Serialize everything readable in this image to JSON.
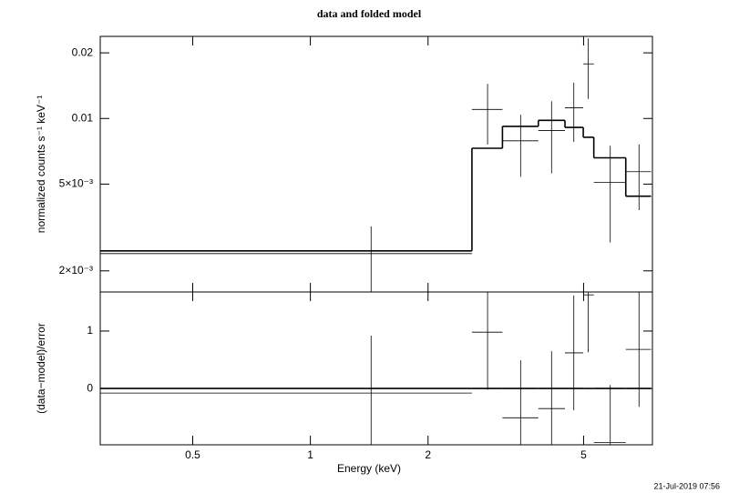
{
  "chart_data": [
    {
      "type": "errorbar",
      "title": "data and folded model",
      "ylabel": "normalized counts s⁻¹ keV⁻¹",
      "xscale": "log",
      "yscale": "log",
      "xlim": [
        0.29,
        7.5
      ],
      "xticks": [
        0.5,
        1,
        2,
        5
      ],
      "ylim": [
        0.0016,
        0.0238
      ],
      "yticks": [
        0.02,
        0.01,
        {
          "value": 0.005,
          "label": "5×10⁻³"
        },
        {
          "value": 0.002,
          "label": "2×10⁻³"
        }
      ],
      "bins": [
        0.29,
        2.59,
        3.1,
        3.83,
        4.48,
        4.99,
        5.31,
        6.41,
        7.44
      ],
      "x": [
        1.43,
        2.84,
        3.45,
        4.14,
        4.72,
        5.14,
        5.85,
        6.93
      ],
      "series": [
        {
          "style": "errorbar",
          "color": "#000000",
          "values": [
            0.0024,
            0.011,
            0.0079,
            0.0088,
            0.0112,
            0.0178,
            0.0051,
            0.0057
          ],
          "errors": [
            0.0008,
            0.0034,
            0.0025,
            0.0032,
            0.0034,
            0.0055,
            0.0024,
            0.0019
          ]
        },
        {
          "style": "step",
          "color": "#000000",
          "values": [
            0.00247,
            0.0073,
            0.0092,
            0.0098,
            0.0091,
            0.0082,
            0.0066,
            0.0044
          ]
        }
      ]
    },
    {
      "type": "errorbar",
      "ylabel": "(data−model)/error",
      "xlabel": "Energy (keV)",
      "xscale": "log",
      "yscale": "linear",
      "xlim": [
        0.29,
        7.5
      ],
      "xticks": [
        0.5,
        1,
        2,
        5
      ],
      "ylim": [
        -0.98,
        1.68
      ],
      "yticks": [
        0,
        1
      ],
      "bins": [
        0.29,
        2.59,
        3.1,
        3.83,
        4.48,
        4.99,
        5.31,
        6.41,
        7.44
      ],
      "x": [
        1.43,
        2.84,
        3.45,
        4.14,
        4.72,
        5.14,
        5.85,
        6.93
      ],
      "series": [
        {
          "style": "errorbar",
          "color": "#000000",
          "values": [
            -0.08,
            0.98,
            -0.51,
            -0.35,
            0.62,
            1.63,
            -0.94,
            0.68
          ],
          "errors": [
            1,
            1,
            1,
            1,
            1,
            1,
            1,
            1
          ]
        },
        {
          "style": "step",
          "color": "#000000",
          "values": [
            0,
            0,
            0,
            0,
            0,
            0,
            0,
            0
          ]
        }
      ]
    }
  ],
  "timestamp": "21-Jul-2019 07:56"
}
